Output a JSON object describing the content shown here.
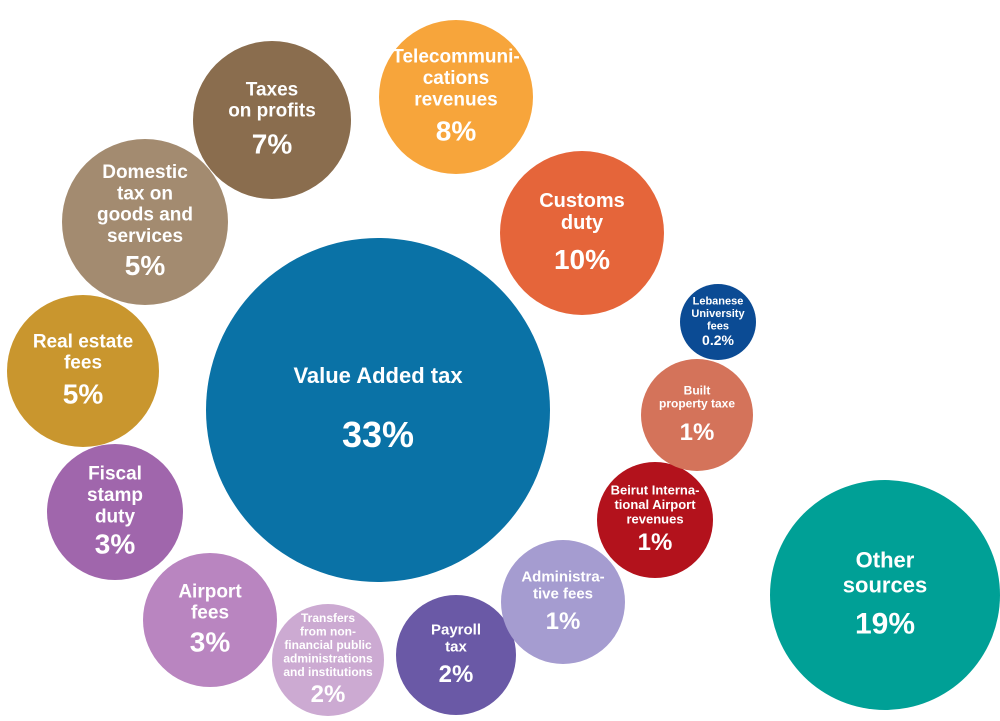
{
  "chart_data": {
    "type": "bubble",
    "categories": [
      "Value Added tax",
      "Other\nsources",
      "Customs\nduty",
      "Telecommuni-\ncations\nrevenues",
      "Taxes\non profits",
      "Domestic\ntax on\ngoods and\nservices",
      "Real estate\nfees",
      "Fiscal\nstamp\nduty",
      "Airport\nfees",
      "Transfers\nfrom non-\nfinancial public\nadministrations\nand institutions",
      "Payroll\ntax",
      "Administra-\ntive fees",
      "Beirut Interna-\ntional Airport\nrevenues",
      "Built\nproperty taxe",
      "Lebanese\nUniversity\nfees"
    ],
    "values": [
      33,
      19,
      10,
      8,
      7,
      5,
      5,
      3,
      3,
      2,
      2,
      1,
      1,
      1,
      0.2
    ],
    "value_labels": [
      "33%",
      "19%",
      "10%",
      "8%",
      "7%",
      "5%",
      "5%",
      "3%",
      "3%",
      "2%",
      "2%",
      "1%",
      "1%",
      "1%",
      "0.2%"
    ],
    "colors": [
      "#0a72a6",
      "#00a096",
      "#e5653a",
      "#f7a53b",
      "#8a6d4e",
      "#a38b70",
      "#c9962e",
      "#a066ac",
      "#b985c0",
      "#ccaad2",
      "#6a59a6",
      "#a59cd0",
      "#b3121c",
      "#d4735a",
      "#0b4b94"
    ]
  }
}
